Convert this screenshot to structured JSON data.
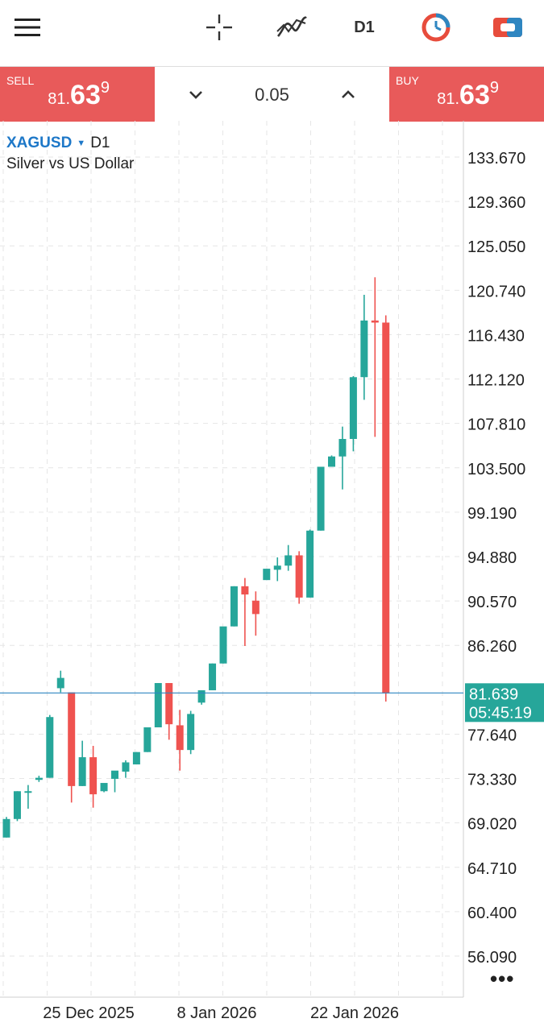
{
  "toolbar": {
    "menu_icon": "hamburger-menu-icon",
    "crosshair_icon": "crosshair-icon",
    "indicators_icon": "indicators-icon",
    "timeframe": "D1",
    "objects_icon": "objects-clock-icon",
    "trade_icon": "trade-toggle-icon"
  },
  "trade_bar": {
    "sell_label": "SELL",
    "sell_price_small": "81.",
    "sell_price_big": "63",
    "sell_price_sup": "9",
    "lot_value": "0.05",
    "buy_label": "BUY",
    "buy_price_small": "81.",
    "buy_price_big": "63",
    "buy_price_sup": "9"
  },
  "symbol": {
    "name": "XAGUSD",
    "timeframe": "D1",
    "description": "Silver vs US Dollar"
  },
  "colors": {
    "bull": "#26a69a",
    "bear": "#ef5350",
    "price_line": "#2e86c1",
    "price_tag": "#26a69a",
    "grid": "#e6e6e6",
    "sell_buy_bg": "#e85a5a"
  },
  "chart_data": {
    "type": "candlestick",
    "y_ticks": [
      "133.670",
      "129.360",
      "125.050",
      "120.740",
      "116.430",
      "112.120",
      "107.810",
      "103.500",
      "99.190",
      "94.880",
      "90.570",
      "86.260",
      "77.640",
      "73.330",
      "69.020",
      "64.710",
      "60.400",
      "56.090"
    ],
    "x_labels": [
      "25 Dec 2025",
      "8 Jan 2026",
      "22 Jan 2026"
    ],
    "current_price": "81.639",
    "countdown": "05:45:19",
    "candles": [
      {
        "o": 67.6,
        "h": 69.6,
        "l": 67.6,
        "c": 69.4
      },
      {
        "o": 69.4,
        "h": 72.1,
        "l": 69.2,
        "c": 72.1
      },
      {
        "o": 72.1,
        "h": 72.7,
        "l": 70.4,
        "c": 72.1
      },
      {
        "o": 73.2,
        "h": 73.6,
        "l": 73.0,
        "c": 73.4
      },
      {
        "o": 73.4,
        "h": 79.5,
        "l": 73.4,
        "c": 79.3
      },
      {
        "o": 82.1,
        "h": 83.8,
        "l": 81.7,
        "c": 83.1
      },
      {
        "o": 81.7,
        "h": 81.7,
        "l": 71.0,
        "c": 72.6
      },
      {
        "o": 72.6,
        "h": 77.0,
        "l": 72.6,
        "c": 75.4
      },
      {
        "o": 75.4,
        "h": 76.5,
        "l": 70.5,
        "c": 71.8
      },
      {
        "o": 72.1,
        "h": 72.7,
        "l": 72.0,
        "c": 72.9
      },
      {
        "o": 73.3,
        "h": 73.6,
        "l": 72.0,
        "c": 74.1
      },
      {
        "o": 74.0,
        "h": 75.1,
        "l": 73.4,
        "c": 74.9
      },
      {
        "o": 74.7,
        "h": 75.9,
        "l": 74.7,
        "c": 75.9
      },
      {
        "o": 75.9,
        "h": 78.2,
        "l": 75.9,
        "c": 78.3
      },
      {
        "o": 78.3,
        "h": 82.6,
        "l": 78.3,
        "c": 82.6
      },
      {
        "o": 82.6,
        "h": 82.6,
        "l": 77.1,
        "c": 78.6
      },
      {
        "o": 78.5,
        "h": 80.0,
        "l": 74.1,
        "c": 76.1
      },
      {
        "o": 76.1,
        "h": 79.9,
        "l": 75.7,
        "c": 79.6
      },
      {
        "o": 80.7,
        "h": 81.9,
        "l": 80.5,
        "c": 81.9
      },
      {
        "o": 81.9,
        "h": 84.5,
        "l": 81.9,
        "c": 84.5
      },
      {
        "o": 84.5,
        "h": 88.0,
        "l": 84.5,
        "c": 88.1
      },
      {
        "o": 88.1,
        "h": 92.0,
        "l": 88.1,
        "c": 92.0
      },
      {
        "o": 92.0,
        "h": 92.8,
        "l": 86.2,
        "c": 91.2
      },
      {
        "o": 90.6,
        "h": 91.5,
        "l": 87.2,
        "c": 89.3
      },
      {
        "o": 92.6,
        "h": 93.6,
        "l": 92.6,
        "c": 93.7
      },
      {
        "o": 93.6,
        "h": 94.8,
        "l": 92.5,
        "c": 94.0
      },
      {
        "o": 94.0,
        "h": 96.0,
        "l": 93.5,
        "c": 95.0
      },
      {
        "o": 95.0,
        "h": 95.4,
        "l": 90.3,
        "c": 90.9
      },
      {
        "o": 90.9,
        "h": 97.5,
        "l": 90.9,
        "c": 97.4
      },
      {
        "o": 97.4,
        "h": 103.6,
        "l": 97.4,
        "c": 103.6
      },
      {
        "o": 103.6,
        "h": 104.7,
        "l": 103.6,
        "c": 104.6
      },
      {
        "o": 104.6,
        "h": 107.5,
        "l": 101.4,
        "c": 106.3
      },
      {
        "o": 106.3,
        "h": 112.4,
        "l": 105.1,
        "c": 112.3
      },
      {
        "o": 112.3,
        "h": 120.3,
        "l": 110.1,
        "c": 117.8
      },
      {
        "o": 117.8,
        "h": 122.0,
        "l": 106.5,
        "c": 117.6
      },
      {
        "o": 117.6,
        "h": 118.3,
        "l": 80.8,
        "c": 81.6
      }
    ]
  }
}
